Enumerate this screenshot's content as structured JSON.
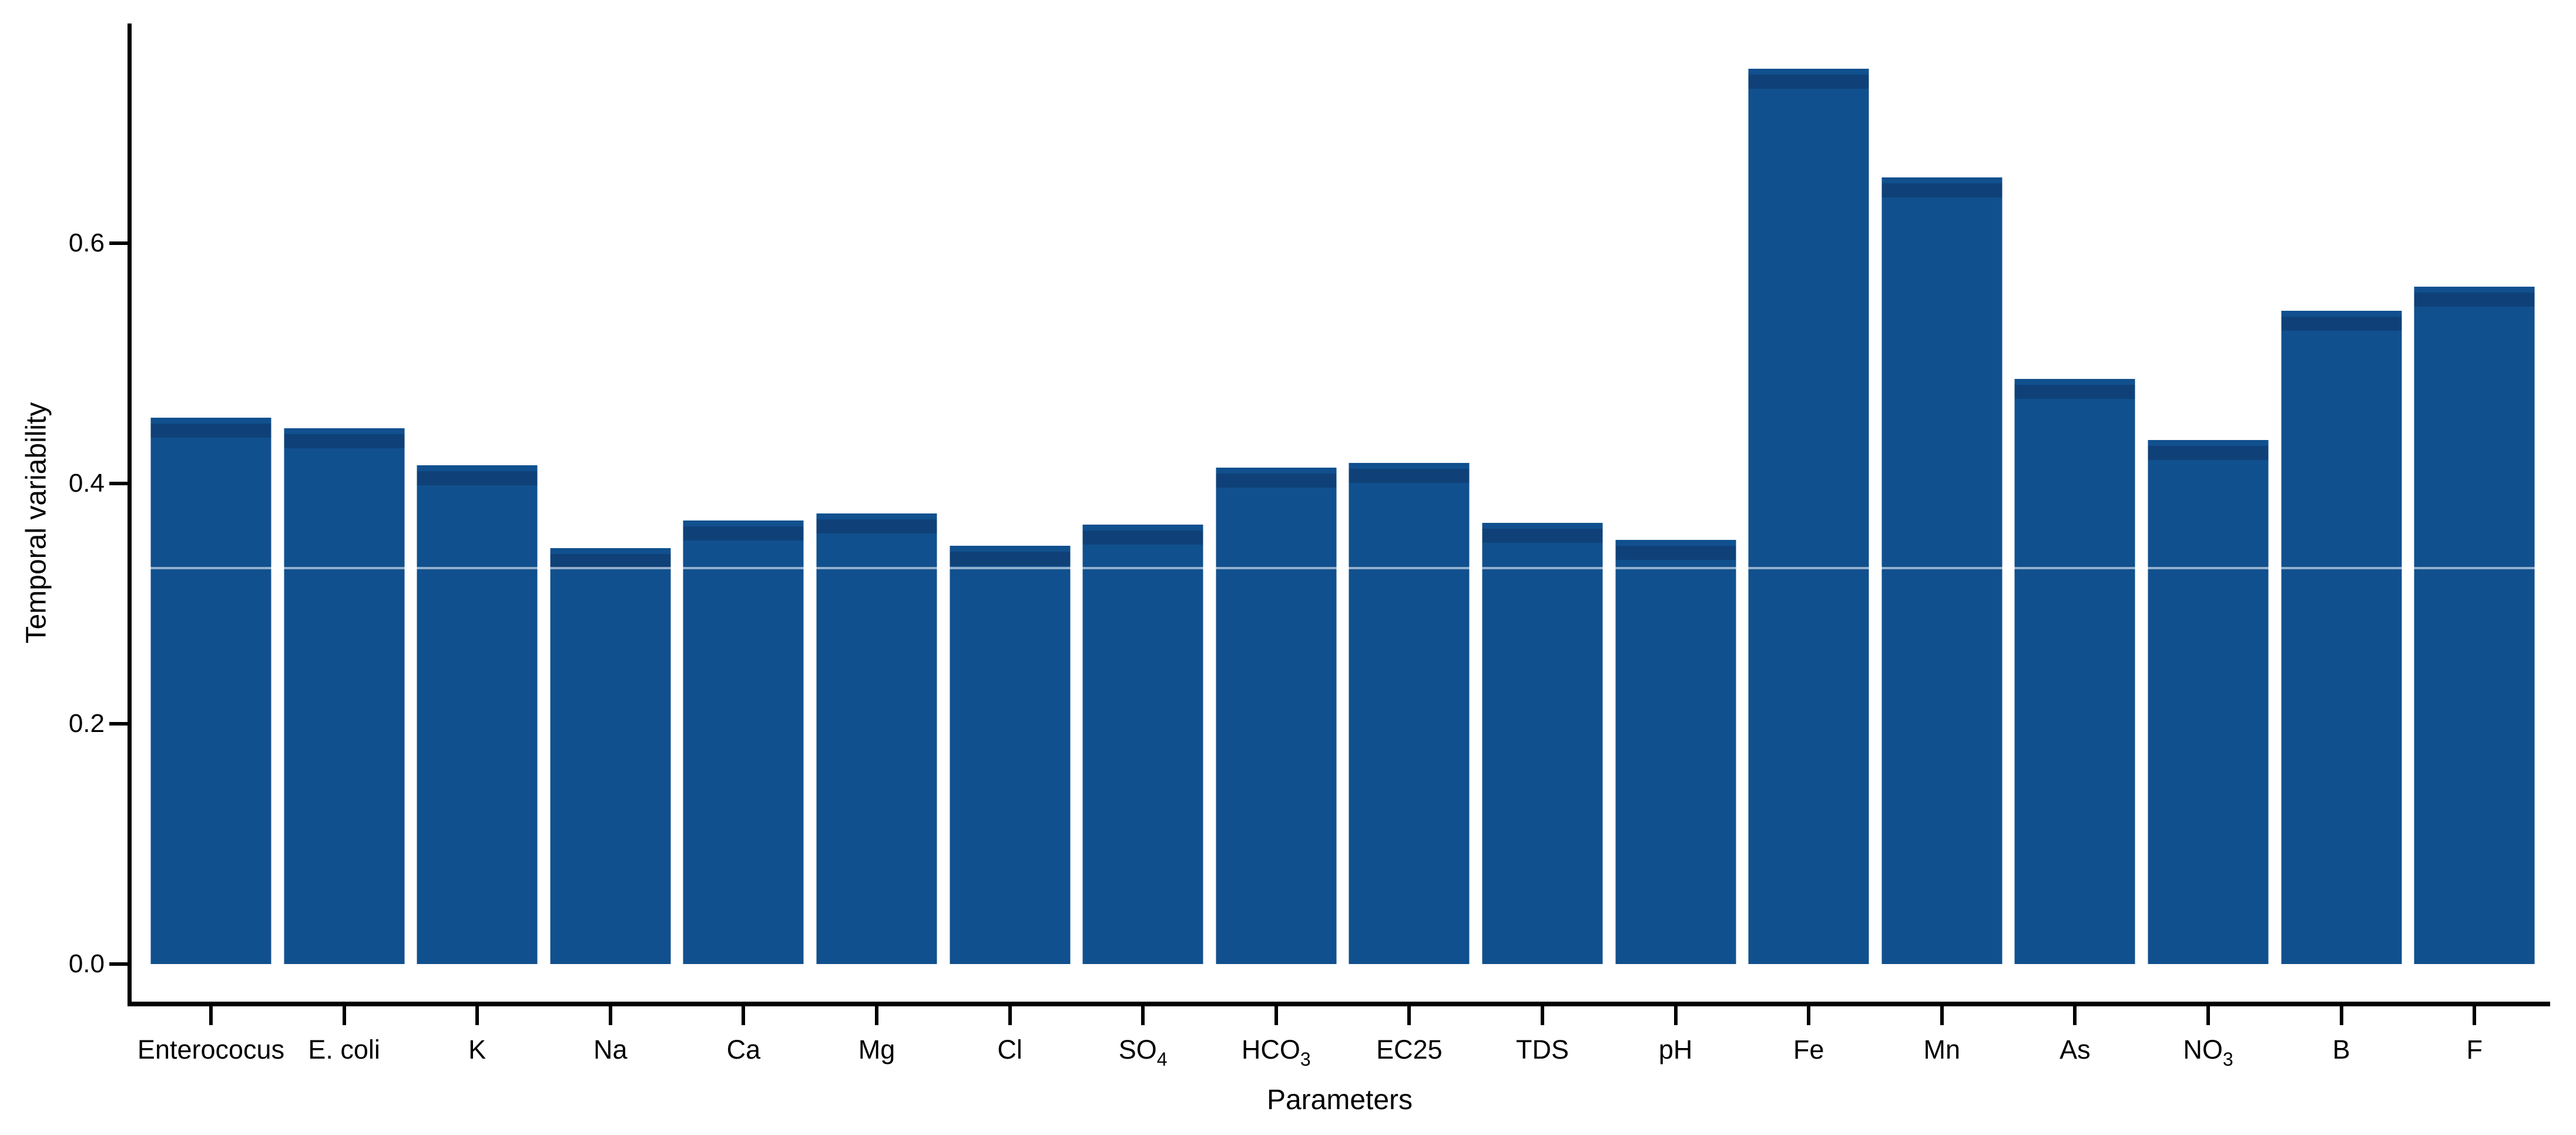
{
  "figure": {
    "background_color": "#ffffff",
    "axis_color": "#000000"
  },
  "chart_data": {
    "type": "bar",
    "title": "",
    "xlabel": "Parameters",
    "ylabel": "Temporal variability",
    "ylim": [
      0,
      0.78
    ],
    "yticks": [
      0,
      0.2,
      0.4,
      0.6
    ],
    "ytick_labels": [
      "0.0",
      "0.2",
      "0.4",
      "0.6"
    ],
    "grid": false,
    "legend": "none",
    "bar_color": "#11508e",
    "categories": [
      "Enterococus",
      "E. coli",
      "K",
      "Na",
      "Ca",
      "Mg",
      "Cl",
      "SO4",
      "HCO3",
      "EC25",
      "TDS",
      "pH",
      "Fe",
      "Mn",
      "As",
      "NO3",
      "B",
      "F"
    ],
    "categories_display": [
      {
        "t": "Enterococus"
      },
      {
        "t": "E. coli"
      },
      {
        "t": "K"
      },
      {
        "t": "Na"
      },
      {
        "t": "Ca"
      },
      {
        "t": "Mg"
      },
      {
        "t": "Cl"
      },
      {
        "t": "SO",
        "s": "4"
      },
      {
        "t": "HCO",
        "s": "3"
      },
      {
        "t": "EC25"
      },
      {
        "t": "TDS"
      },
      {
        "t": "pH"
      },
      {
        "t": "Fe"
      },
      {
        "t": "Mn"
      },
      {
        "t": "As"
      },
      {
        "t": "NO",
        "s": "3"
      },
      {
        "t": "B"
      },
      {
        "t": "F"
      }
    ],
    "values": [
      0.455,
      0.446,
      0.415,
      0.346,
      0.369,
      0.375,
      0.348,
      0.366,
      0.413,
      0.417,
      0.367,
      0.353,
      0.745,
      0.655,
      0.487,
      0.436,
      0.544,
      0.564
    ]
  }
}
